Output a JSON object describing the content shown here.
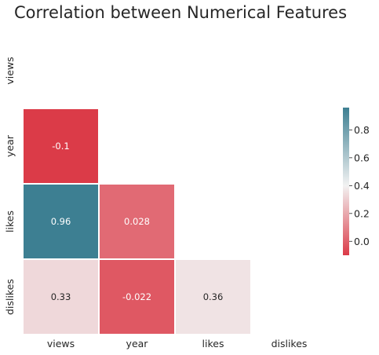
{
  "chart_data": {
    "type": "heatmap",
    "title": "Correlation between Numerical Features",
    "x_labels": [
      "views",
      "year",
      "likes",
      "dislikes"
    ],
    "y_labels": [
      "views",
      "year",
      "likes",
      "dislikes"
    ],
    "mask": "upper-triangle-including-diagonal",
    "cells": [
      {
        "row": "year",
        "col": "views",
        "value": -0.1,
        "label": "-0.1"
      },
      {
        "row": "likes",
        "col": "views",
        "value": 0.96,
        "label": "0.96"
      },
      {
        "row": "likes",
        "col": "year",
        "value": 0.028,
        "label": "0.028"
      },
      {
        "row": "dislikes",
        "col": "views",
        "value": 0.33,
        "label": "0.33"
      },
      {
        "row": "dislikes",
        "col": "year",
        "value": -0.022,
        "label": "-0.022"
      },
      {
        "row": "dislikes",
        "col": "likes",
        "value": 0.36,
        "label": "0.36"
      }
    ],
    "colorbar": {
      "min": -0.1,
      "max": 0.96,
      "center": 0.4,
      "ticks": [
        "0.0",
        "0.2",
        "0.4",
        "0.6",
        "0.8"
      ],
      "tick_values": [
        0.0,
        0.2,
        0.4,
        0.6,
        0.8
      ]
    },
    "colors": {
      "negative": "#db3b48",
      "center": "#f2f2f2",
      "positive": "#3d7f92",
      "text_dark": "#262626",
      "text_light": "#ffffff"
    }
  }
}
